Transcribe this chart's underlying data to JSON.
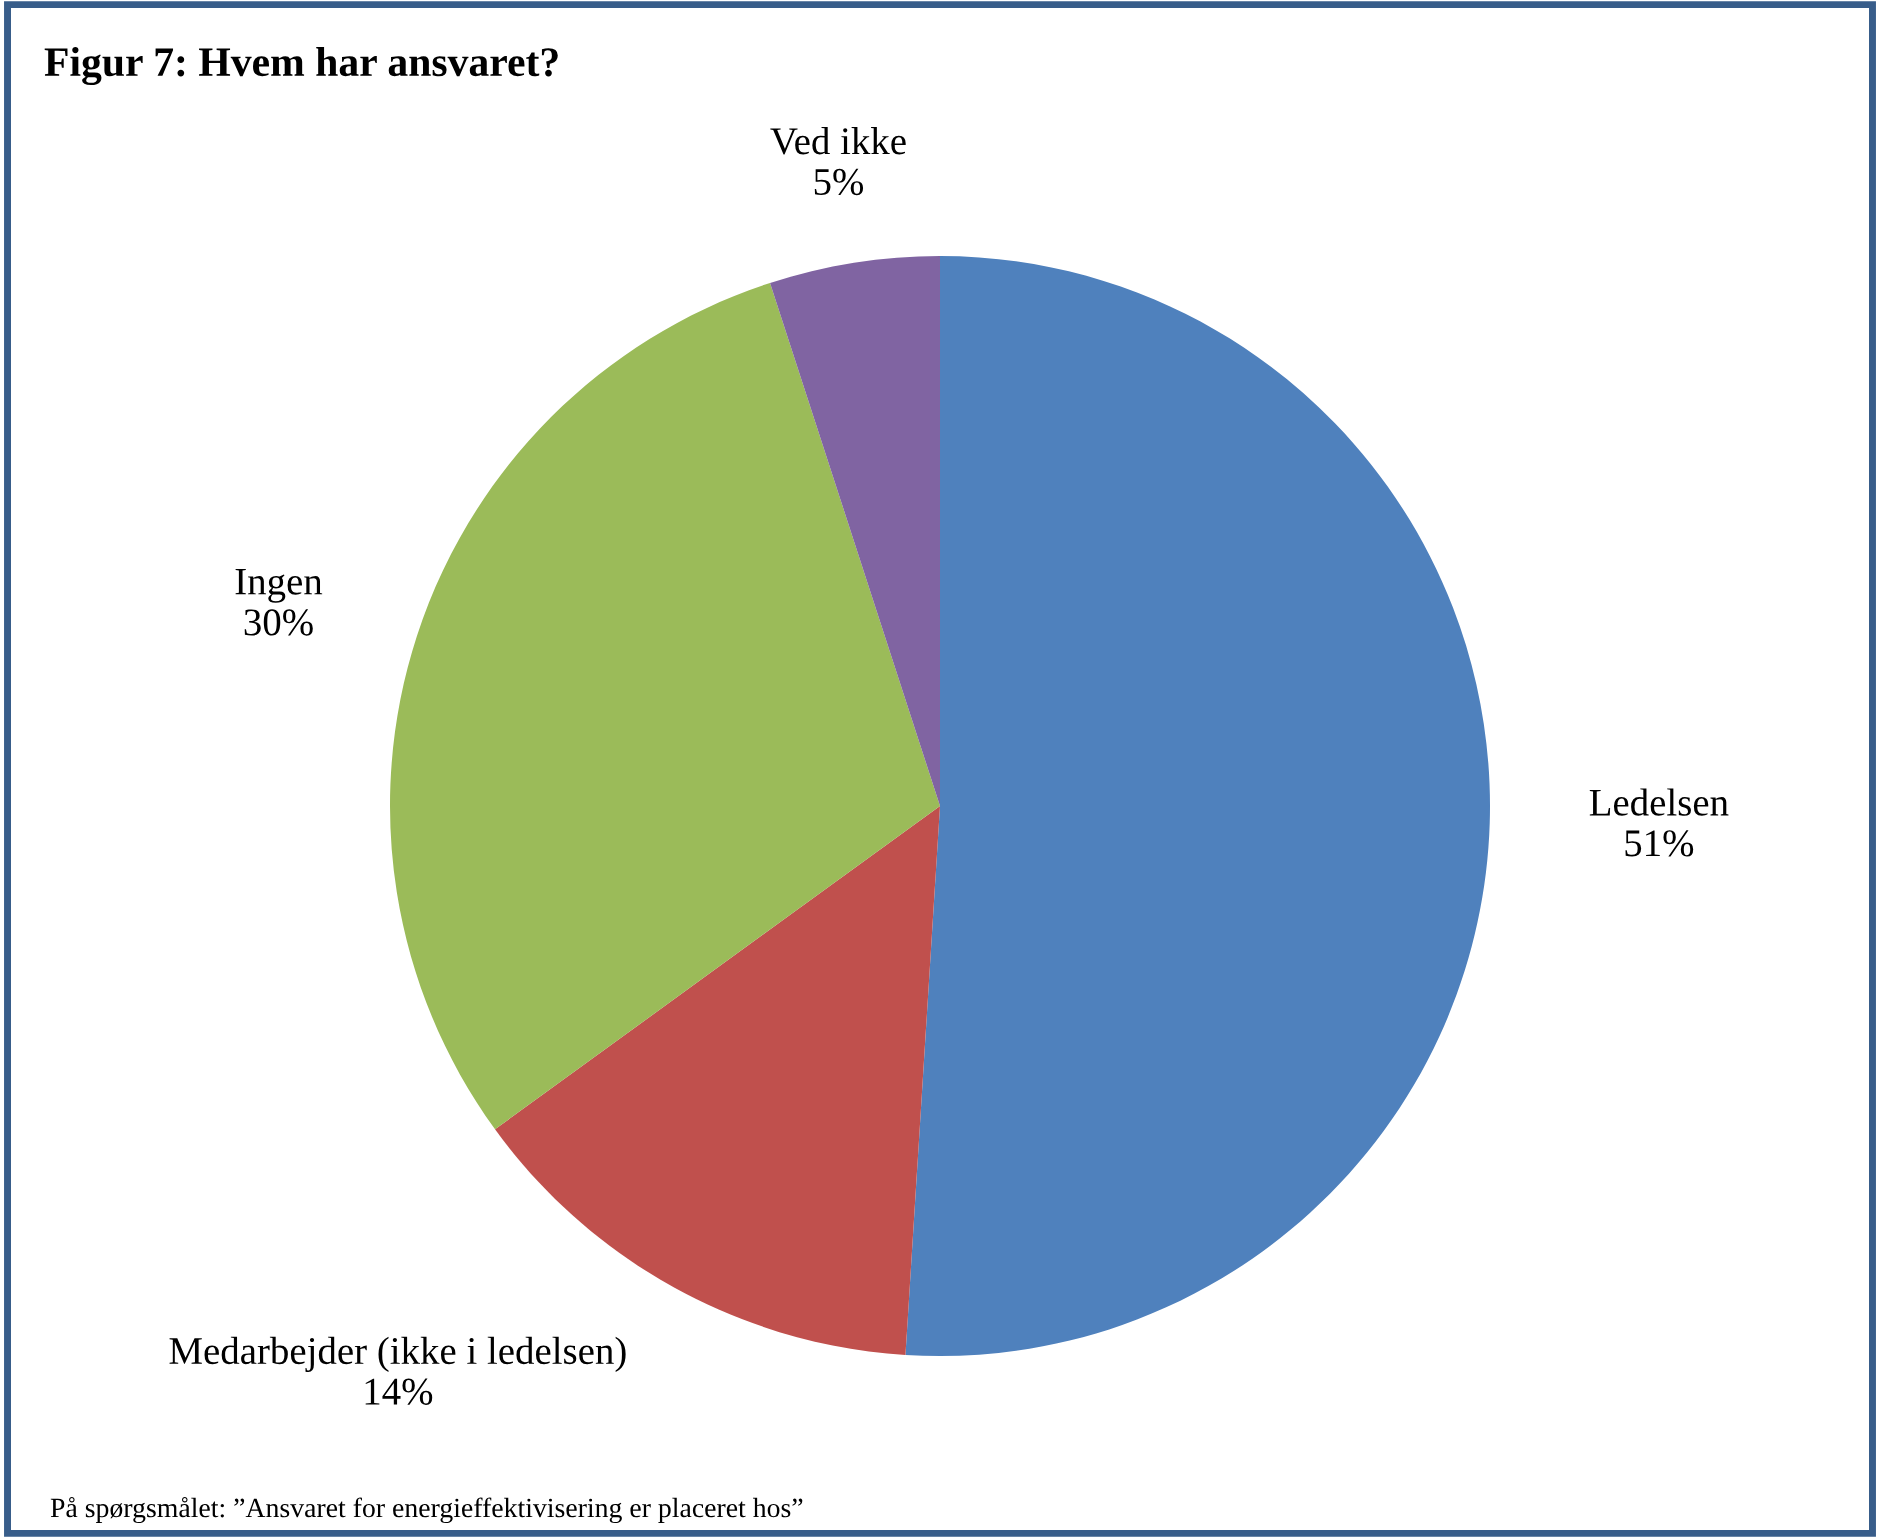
{
  "chart_data": {
    "type": "pie",
    "title": "Figur 7: Hvem har ansvaret?",
    "categories": [
      "Ledelsen",
      "Medarbejder (ikke i ledelsen)",
      "Ingen",
      "Ved ikke"
    ],
    "values": [
      51,
      14,
      30,
      5
    ],
    "colors": [
      "#4f81bd",
      "#c0504d",
      "#9bbb59",
      "#8064a2"
    ],
    "value_labels": [
      "51%",
      "14%",
      "30%",
      "5%"
    ],
    "legend": false,
    "annotations": [
      "På spørgsmålet: ”Ansvaret for energieffektivisering er placeret hos”"
    ]
  }
}
